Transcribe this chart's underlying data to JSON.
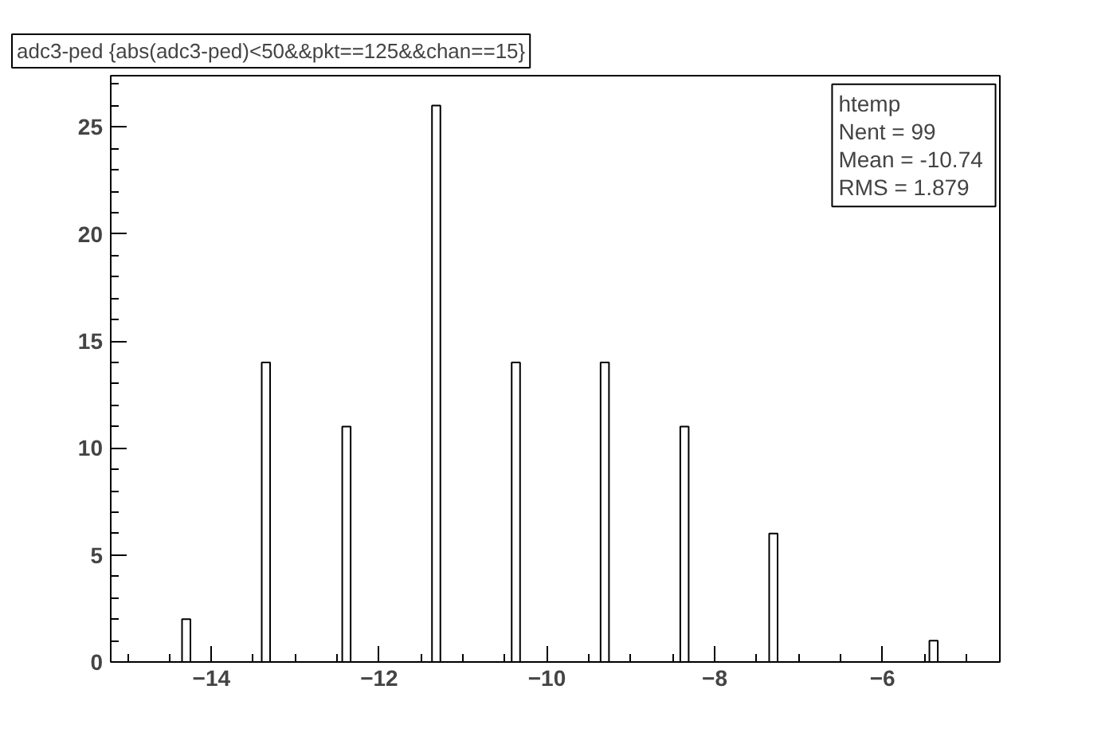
{
  "chart_data": {
    "type": "histogram",
    "title": "adc3-ped {abs(adc3-ped)<50&&pkt==125&&chan==15}",
    "bins": [
      -14.35,
      -14.25,
      -13.4,
      -13.3,
      -12.44,
      -12.34,
      -11.37,
      -11.27,
      -10.42,
      -10.32,
      -9.36,
      -9.26,
      -8.41,
      -8.31,
      -7.35,
      -7.25,
      -5.44,
      -5.34
    ],
    "values": [
      2,
      0,
      14,
      0,
      11,
      0,
      26,
      0,
      14,
      0,
      14,
      0,
      11,
      0,
      6,
      0,
      1
    ],
    "color": "#ffffff",
    "xlim": [
      -15.2,
      -4.6
    ],
    "xticks": [
      -14,
      -12,
      -10,
      -8,
      -6
    ],
    "ylim": [
      0,
      27.4
    ],
    "yticks": [
      0,
      5,
      10,
      15,
      20,
      25
    ],
    "annotations": [
      "htemp",
      "Nent = 99",
      "Mean  = -10.74",
      "RMS   = 1.879"
    ],
    "grid": false
  }
}
